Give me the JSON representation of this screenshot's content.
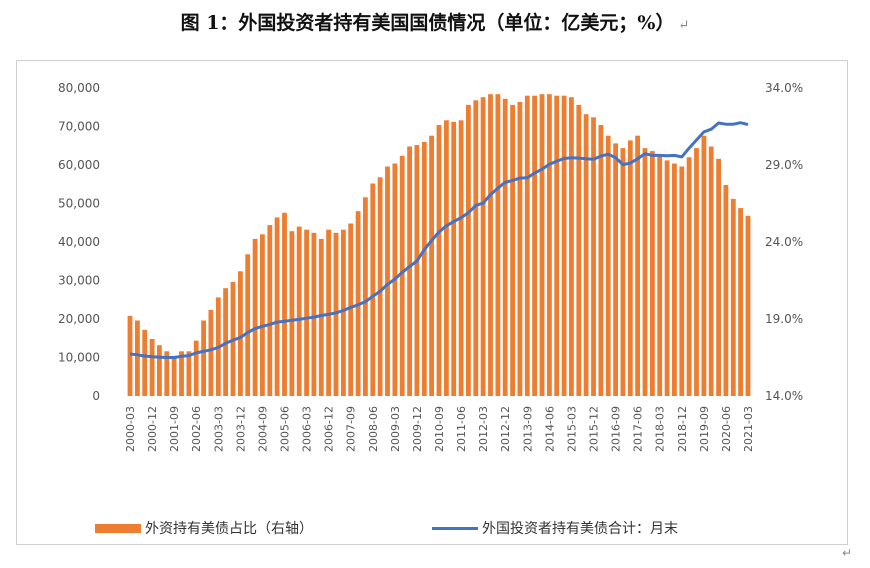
{
  "title": "图 1：外国投资者持有美国国债情况（单位：亿美元；%）",
  "title_mark": "↵",
  "end_mark": "↵",
  "colors": {
    "bars": "#ED7D31",
    "line": "#4472C4"
  },
  "chart_data": {
    "type": "bar+line",
    "left_axis": {
      "ylim": [
        0,
        80000
      ],
      "ticks": [
        "0",
        "10,000",
        "20,000",
        "30,000",
        "40,000",
        "50,000",
        "60,000",
        "70,000",
        "80,000"
      ]
    },
    "right_axis": {
      "ylim": [
        14.0,
        34.0
      ],
      "ticks": [
        "14.0%",
        "19.0%",
        "24.0%",
        "29.0%",
        "34.0%"
      ]
    },
    "x_tick_labels": [
      "2000-03",
      "2000-12",
      "2001-09",
      "2002-06",
      "2003-03",
      "2003-12",
      "2004-09",
      "2005-06",
      "2006-03",
      "2006-12",
      "2007-09",
      "2008-06",
      "2009-03",
      "2009-12",
      "2010-09",
      "2011-06",
      "2012-03",
      "2012-12",
      "2013-09",
      "2014-06",
      "2015-03",
      "2015-12",
      "2016-09",
      "2017-06",
      "2018-03",
      "2018-12",
      "2019-09",
      "2020-06",
      "2021-03"
    ],
    "legend_position": "bottom",
    "series": [
      {
        "name": "外资持有美债占比（右轴）",
        "type": "bar",
        "axis": "right",
        "points": [
          [
            "2000-03",
            19.2
          ],
          [
            "2000-06",
            18.9
          ],
          [
            "2000-09",
            18.3
          ],
          [
            "2000-12",
            17.7
          ],
          [
            "2001-03",
            17.3
          ],
          [
            "2001-06",
            16.9
          ],
          [
            "2001-09",
            16.6
          ],
          [
            "2001-12",
            16.9
          ],
          [
            "2002-03",
            16.9
          ],
          [
            "2002-06",
            17.6
          ],
          [
            "2002-09",
            18.9
          ],
          [
            "2002-12",
            19.6
          ],
          [
            "2003-03",
            20.4
          ],
          [
            "2003-06",
            21.0
          ],
          [
            "2003-09",
            21.4
          ],
          [
            "2003-12",
            22.1
          ],
          [
            "2004-03",
            23.2
          ],
          [
            "2004-06",
            24.2
          ],
          [
            "2004-09",
            24.5
          ],
          [
            "2004-12",
            25.1
          ],
          [
            "2005-03",
            25.6
          ],
          [
            "2005-06",
            25.9
          ],
          [
            "2005-09",
            24.7
          ],
          [
            "2005-12",
            25.0
          ],
          [
            "2006-03",
            24.8
          ],
          [
            "2006-06",
            24.6
          ],
          [
            "2006-09",
            24.2
          ],
          [
            "2006-12",
            24.8
          ],
          [
            "2007-03",
            24.6
          ],
          [
            "2007-06",
            24.8
          ],
          [
            "2007-09",
            25.2
          ],
          [
            "2007-12",
            26.0
          ],
          [
            "2008-03",
            26.9
          ],
          [
            "2008-06",
            27.8
          ],
          [
            "2008-09",
            28.2
          ],
          [
            "2008-12",
            28.9
          ],
          [
            "2009-03",
            29.1
          ],
          [
            "2009-06",
            29.6
          ],
          [
            "2009-09",
            30.2
          ],
          [
            "2009-12",
            30.3
          ],
          [
            "2010-03",
            30.5
          ],
          [
            "2010-06",
            30.9
          ],
          [
            "2010-09",
            31.6
          ],
          [
            "2010-12",
            31.9
          ],
          [
            "2011-03",
            31.8
          ],
          [
            "2011-06",
            31.9
          ],
          [
            "2011-09",
            32.9
          ],
          [
            "2011-12",
            33.2
          ],
          [
            "2012-03",
            33.4
          ],
          [
            "2012-06",
            33.6
          ],
          [
            "2012-09",
            33.6
          ],
          [
            "2012-12",
            33.3
          ],
          [
            "2013-03",
            32.9
          ],
          [
            "2013-06",
            33.1
          ],
          [
            "2013-09",
            33.5
          ],
          [
            "2013-12",
            33.5
          ],
          [
            "2014-03",
            33.6
          ],
          [
            "2014-06",
            33.6
          ],
          [
            "2014-09",
            33.5
          ],
          [
            "2014-12",
            33.5
          ],
          [
            "2015-03",
            33.4
          ],
          [
            "2015-06",
            32.9
          ],
          [
            "2015-09",
            32.3
          ],
          [
            "2015-12",
            32.1
          ],
          [
            "2016-03",
            31.6
          ],
          [
            "2016-06",
            30.9
          ],
          [
            "2016-09",
            30.4
          ],
          [
            "2016-12",
            30.1
          ],
          [
            "2017-03",
            30.6
          ],
          [
            "2017-06",
            30.9
          ],
          [
            "2017-09",
            30.1
          ],
          [
            "2017-12",
            29.9
          ],
          [
            "2018-03",
            29.6
          ],
          [
            "2018-06",
            29.3
          ],
          [
            "2018-09",
            29.1
          ],
          [
            "2018-12",
            28.9
          ],
          [
            "2019-03",
            29.5
          ],
          [
            "2019-06",
            30.1
          ],
          [
            "2019-09",
            30.9
          ],
          [
            "2019-12",
            30.2
          ],
          [
            "2020-03",
            29.4
          ],
          [
            "2020-06",
            27.7
          ],
          [
            "2020-09",
            26.8
          ],
          [
            "2020-12",
            26.2
          ],
          [
            "2021-03",
            25.7
          ]
        ]
      },
      {
        "name": "外国投资者持有美债合计：月末",
        "type": "line",
        "axis": "left",
        "points": [
          [
            "2000-03",
            10900
          ],
          [
            "2000-06",
            10700
          ],
          [
            "2000-09",
            10400
          ],
          [
            "2000-12",
            10200
          ],
          [
            "2001-03",
            10100
          ],
          [
            "2001-06",
            10000
          ],
          [
            "2001-09",
            10000
          ],
          [
            "2001-12",
            10300
          ],
          [
            "2002-03",
            10500
          ],
          [
            "2002-06",
            11200
          ],
          [
            "2002-09",
            11600
          ],
          [
            "2002-12",
            12000
          ],
          [
            "2003-03",
            12600
          ],
          [
            "2003-06",
            13700
          ],
          [
            "2003-09",
            14500
          ],
          [
            "2003-12",
            15200
          ],
          [
            "2004-03",
            16500
          ],
          [
            "2004-06",
            17500
          ],
          [
            "2004-09",
            18100
          ],
          [
            "2004-12",
            18600
          ],
          [
            "2005-03",
            19200
          ],
          [
            "2005-06",
            19400
          ],
          [
            "2005-09",
            19700
          ],
          [
            "2005-12",
            19900
          ],
          [
            "2006-03",
            20200
          ],
          [
            "2006-06",
            20500
          ],
          [
            "2006-09",
            20900
          ],
          [
            "2006-12",
            21200
          ],
          [
            "2007-03",
            21600
          ],
          [
            "2007-06",
            22200
          ],
          [
            "2007-09",
            23000
          ],
          [
            "2007-12",
            23700
          ],
          [
            "2008-03",
            24500
          ],
          [
            "2008-06",
            25900
          ],
          [
            "2008-09",
            27200
          ],
          [
            "2008-12",
            29000
          ],
          [
            "2009-03",
            30400
          ],
          [
            "2009-06",
            32100
          ],
          [
            "2009-09",
            33600
          ],
          [
            "2009-12",
            35100
          ],
          [
            "2010-03",
            38000
          ],
          [
            "2010-06",
            40400
          ],
          [
            "2010-09",
            42600
          ],
          [
            "2010-12",
            44200
          ],
          [
            "2011-03",
            45300
          ],
          [
            "2011-06",
            46300
          ],
          [
            "2011-09",
            47600
          ],
          [
            "2011-12",
            49500
          ],
          [
            "2012-03",
            50100
          ],
          [
            "2012-06",
            52300
          ],
          [
            "2012-09",
            54000
          ],
          [
            "2012-12",
            55500
          ],
          [
            "2013-03",
            56000
          ],
          [
            "2013-06",
            56600
          ],
          [
            "2013-09",
            56700
          ],
          [
            "2013-12",
            57900
          ],
          [
            "2014-03",
            58900
          ],
          [
            "2014-06",
            60200
          ],
          [
            "2014-09",
            61000
          ],
          [
            "2014-12",
            61700
          ],
          [
            "2015-03",
            61900
          ],
          [
            "2015-06",
            61800
          ],
          [
            "2015-09",
            61600
          ],
          [
            "2015-12",
            61500
          ],
          [
            "2016-03",
            62300
          ],
          [
            "2016-06",
            62800
          ],
          [
            "2016-09",
            61900
          ],
          [
            "2016-12",
            60100
          ],
          [
            "2017-03",
            60500
          ],
          [
            "2017-06",
            61600
          ],
          [
            "2017-09",
            62900
          ],
          [
            "2017-12",
            62500
          ],
          [
            "2018-03",
            62500
          ],
          [
            "2018-06",
            62400
          ],
          [
            "2018-09",
            62500
          ],
          [
            "2018-12",
            62100
          ],
          [
            "2019-03",
            64400
          ],
          [
            "2019-06",
            66500
          ],
          [
            "2019-09",
            68600
          ],
          [
            "2019-12",
            69300
          ],
          [
            "2020-03",
            70900
          ],
          [
            "2020-06",
            70600
          ],
          [
            "2020-09",
            70600
          ],
          [
            "2020-12",
            71000
          ],
          [
            "2021-03",
            70500
          ]
        ]
      }
    ]
  }
}
